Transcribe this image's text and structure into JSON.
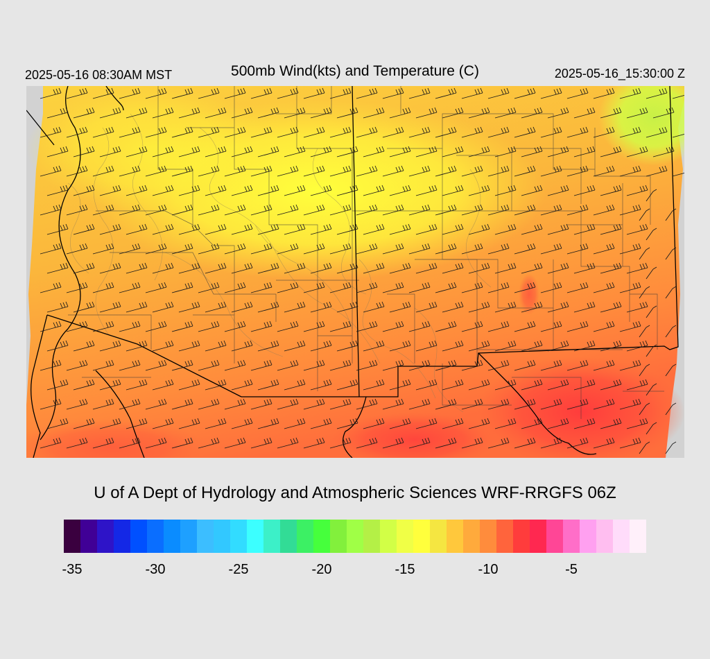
{
  "header": {
    "valid_local": "2025-05-16 08:30AM MST",
    "title": "500mb Wind(kts) and Temperature (C)",
    "valid_utc": "2025-05-16_15:30:00 Z"
  },
  "credit": "U of A Dept of Hydrology and Atmospheric Sciences WRF-RRGFS 06Z",
  "legend": {
    "tick_labels": [
      "-35",
      "-30",
      "-25",
      "-20",
      "-15",
      "-10",
      "-5"
    ],
    "colors": [
      "#3a003f",
      "#400096",
      "#2e14c8",
      "#1428e6",
      "#0050ff",
      "#0a6eff",
      "#0a8cff",
      "#1ea0ff",
      "#3cbeff",
      "#32c8ff",
      "#32dcff",
      "#3cffff",
      "#3cf0c8",
      "#32dc96",
      "#3cf064",
      "#46ff3c",
      "#82f03c",
      "#a0ff46",
      "#b4f046",
      "#d2ff46",
      "#f0ff46",
      "#ffff3c",
      "#f5e641",
      "#ffc83c",
      "#ffaa3c",
      "#ff8c3c",
      "#ff643c",
      "#ff3c3c",
      "#ff2850",
      "#ff4696",
      "#ff6ec8",
      "#ffa0f0",
      "#ffbef0",
      "#ffdcfa",
      "#fff0fa"
    ]
  },
  "map": {
    "field_colors": {
      "cool": "#f0ff46",
      "mid": "#ffc83c",
      "warm": "#ff8c3c",
      "hot": "#ff643c",
      "hottest": "#ff3c3c",
      "green": "#d2ff46",
      "outside": "#d2d2d2"
    },
    "wind_color": "#1a1a1a",
    "line_color": "#000000"
  }
}
